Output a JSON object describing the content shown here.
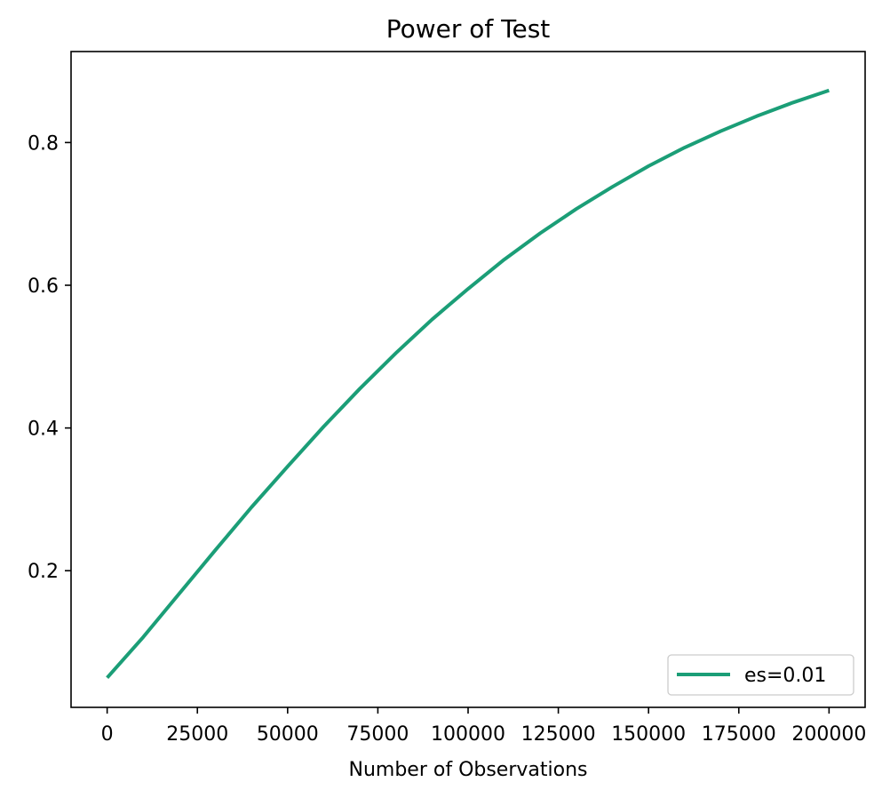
{
  "chart_data": {
    "type": "line",
    "title": "Power of Test",
    "xlabel": "Number of Observations",
    "ylabel": "",
    "xlim": [
      -10000,
      210000
    ],
    "ylim": [
      0.0085,
      0.9275
    ],
    "xticks": [
      0,
      25000,
      50000,
      75000,
      100000,
      125000,
      150000,
      175000,
      200000
    ],
    "xtick_labels": [
      "0",
      "25000",
      "50000",
      "75000",
      "100000",
      "125000",
      "150000",
      "175000",
      "200000"
    ],
    "yticks": [
      0.2,
      0.4,
      0.6,
      0.8
    ],
    "ytick_labels": [
      "0.2",
      "0.4",
      "0.6",
      "0.8"
    ],
    "grid": false,
    "legend_position": "lower-right",
    "series": [
      {
        "name": "es=0.01",
        "color": "#1b9e77",
        "x": [
          0,
          10000,
          20000,
          30000,
          40000,
          50000,
          60000,
          70000,
          80000,
          90000,
          100000,
          110000,
          120000,
          130000,
          140000,
          150000,
          160000,
          170000,
          180000,
          190000,
          200000
        ],
        "y": [
          0.05,
          0.107,
          0.168,
          0.229,
          0.289,
          0.346,
          0.402,
          0.455,
          0.505,
          0.552,
          0.595,
          0.636,
          0.673,
          0.707,
          0.738,
          0.767,
          0.793,
          0.816,
          0.837,
          0.856,
          0.873
        ]
      }
    ]
  }
}
